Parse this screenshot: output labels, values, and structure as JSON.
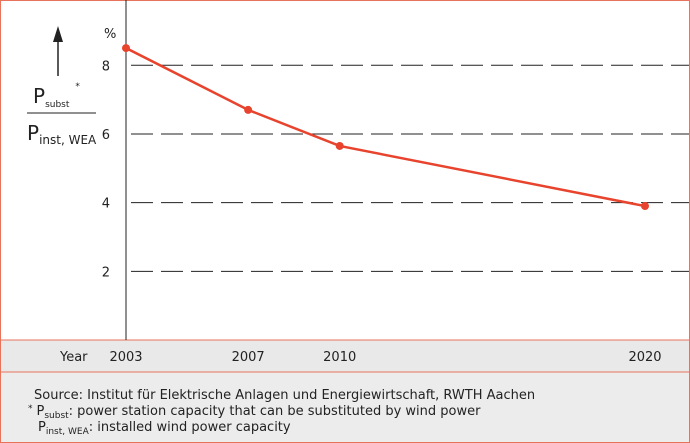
{
  "chart_data": {
    "type": "line",
    "y_label": {
      "symbol_top": "P",
      "sub_top": "subst",
      "mark_top": "*",
      "symbol_bottom": "P",
      "sub_bottom": "inst, WEA"
    },
    "y_unit": "%",
    "x_label": "Year",
    "x": [
      2003,
      2007,
      2010,
      2020
    ],
    "xlim": [
      2003,
      2020
    ],
    "xticks": [
      2003,
      2007,
      2010,
      2020
    ],
    "ylim": [
      0,
      9.9
    ],
    "yticks": [
      2,
      4,
      6,
      8
    ],
    "grid": true,
    "series": [
      {
        "name": null,
        "color": "#e8432d",
        "values": [
          8.5,
          6.7,
          5.65,
          3.9
        ]
      }
    ]
  },
  "notes": {
    "source": "Source: Institut für Elektrische Anlagen und Energiewirtschaft, RWTH Aachen",
    "footnotes": [
      {
        "marker": "*",
        "symbol": "P",
        "subscript": "subst",
        "text": ": power station capacity that can be substituted by wind power"
      },
      {
        "symbol": "P",
        "subscript": "inst, WEA",
        "text": ": installed wind power capacity"
      }
    ]
  }
}
